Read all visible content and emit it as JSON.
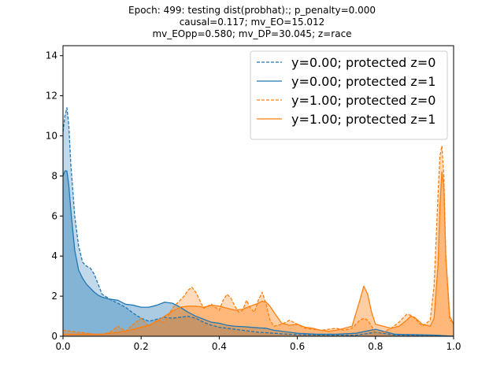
{
  "chart_data": {
    "type": "area",
    "title_lines": [
      "Epoch: 499: testing dist(probhat):; p_penalty=0.000",
      "causal=0.117; mv_EO=15.012",
      "mv_EOpp=0.580; mv_DP=30.045; z=race"
    ],
    "xlabel": "",
    "ylabel": "",
    "xlim": [
      0.0,
      1.0
    ],
    "ylim": [
      0,
      14.5
    ],
    "xticks": [
      0.0,
      0.2,
      0.4,
      0.6,
      0.8,
      1.0
    ],
    "xtick_labels": [
      "0.0",
      "0.2",
      "0.4",
      "0.6",
      "0.8",
      "1.0"
    ],
    "yticks": [
      0,
      2,
      4,
      6,
      8,
      10,
      12,
      14
    ],
    "ytick_labels": [
      "0",
      "2",
      "4",
      "6",
      "8",
      "10",
      "12",
      "14"
    ],
    "legend_position": "top-right",
    "grid": false,
    "series": [
      {
        "name": "y=0.00; protected z=0",
        "color": "#1f77b4",
        "linestyle": "dashed",
        "x": [
          0.0,
          0.005,
          0.01,
          0.015,
          0.02,
          0.03,
          0.04,
          0.05,
          0.06,
          0.07,
          0.08,
          0.09,
          0.1,
          0.12,
          0.14,
          0.16,
          0.18,
          0.2,
          0.22,
          0.24,
          0.26,
          0.28,
          0.3,
          0.32,
          0.34,
          0.36,
          0.38,
          0.4,
          0.42,
          0.44,
          0.46,
          0.48,
          0.5,
          0.52,
          0.54,
          0.56,
          0.58,
          0.6,
          0.65,
          0.7,
          0.75,
          0.8,
          0.85,
          0.9,
          0.95,
          1.0
        ],
        "y": [
          10.2,
          11.0,
          11.4,
          10.5,
          8.6,
          6.0,
          4.5,
          3.7,
          3.5,
          3.4,
          3.1,
          2.6,
          2.1,
          1.85,
          1.65,
          1.45,
          1.15,
          0.9,
          0.75,
          0.85,
          0.95,
          0.9,
          0.95,
          1.0,
          0.9,
          0.7,
          0.55,
          0.45,
          0.4,
          0.35,
          0.3,
          0.25,
          0.2,
          0.18,
          0.15,
          0.12,
          0.1,
          0.08,
          0.06,
          0.05,
          0.05,
          0.2,
          0.06,
          0.05,
          0.05,
          0.0
        ]
      },
      {
        "name": "y=0.00; protected z=1",
        "color": "#1f77b4",
        "linestyle": "solid",
        "x": [
          0.0,
          0.005,
          0.01,
          0.015,
          0.02,
          0.03,
          0.04,
          0.05,
          0.06,
          0.07,
          0.08,
          0.09,
          0.1,
          0.12,
          0.14,
          0.16,
          0.18,
          0.2,
          0.22,
          0.24,
          0.26,
          0.28,
          0.3,
          0.32,
          0.34,
          0.36,
          0.38,
          0.4,
          0.42,
          0.44,
          0.46,
          0.48,
          0.5,
          0.52,
          0.54,
          0.56,
          0.58,
          0.6,
          0.65,
          0.7,
          0.75,
          0.8,
          0.85,
          0.9,
          0.95,
          1.0
        ],
        "y": [
          8.0,
          8.25,
          8.25,
          7.5,
          6.3,
          4.3,
          3.3,
          2.9,
          2.6,
          2.4,
          2.2,
          2.05,
          1.95,
          1.85,
          1.8,
          1.6,
          1.55,
          1.45,
          1.45,
          1.55,
          1.7,
          1.65,
          1.45,
          1.2,
          1.0,
          0.85,
          0.7,
          0.65,
          0.55,
          0.5,
          0.48,
          0.45,
          0.42,
          0.4,
          0.3,
          0.25,
          0.2,
          0.15,
          0.1,
          0.1,
          0.15,
          0.35,
          0.1,
          0.08,
          0.06,
          0.0
        ]
      },
      {
        "name": "y=1.00; protected z=0",
        "color": "#ff7f0e",
        "linestyle": "dashed",
        "x": [
          0.0,
          0.02,
          0.04,
          0.06,
          0.08,
          0.1,
          0.12,
          0.14,
          0.16,
          0.18,
          0.2,
          0.22,
          0.24,
          0.26,
          0.28,
          0.3,
          0.31,
          0.32,
          0.33,
          0.34,
          0.35,
          0.36,
          0.38,
          0.4,
          0.41,
          0.42,
          0.43,
          0.44,
          0.45,
          0.46,
          0.47,
          0.48,
          0.49,
          0.5,
          0.51,
          0.52,
          0.53,
          0.54,
          0.56,
          0.58,
          0.6,
          0.62,
          0.64,
          0.66,
          0.68,
          0.7,
          0.72,
          0.74,
          0.76,
          0.77,
          0.78,
          0.8,
          0.82,
          0.84,
          0.86,
          0.88,
          0.89,
          0.9,
          0.92,
          0.94,
          0.95,
          0.96,
          0.965,
          0.97,
          0.975,
          0.98,
          0.99,
          1.0
        ],
        "y": [
          0.3,
          0.25,
          0.2,
          0.15,
          0.1,
          0.1,
          0.2,
          0.5,
          0.25,
          0.6,
          0.9,
          0.5,
          0.8,
          0.7,
          1.4,
          1.8,
          2.0,
          2.3,
          2.45,
          2.2,
          1.8,
          1.4,
          1.6,
          1.3,
          1.8,
          2.1,
          1.9,
          1.5,
          1.2,
          1.3,
          1.8,
          1.4,
          1.2,
          1.8,
          2.2,
          1.6,
          0.8,
          0.5,
          0.6,
          0.8,
          0.6,
          0.4,
          0.35,
          0.3,
          0.35,
          0.4,
          0.3,
          0.4,
          0.8,
          0.9,
          0.8,
          0.2,
          0.2,
          0.4,
          0.7,
          1.1,
          1.05,
          0.9,
          0.5,
          0.8,
          2.5,
          7.0,
          9.0,
          9.5,
          8.0,
          4.0,
          0.8,
          0.7
        ]
      },
      {
        "name": "y=1.00; protected z=1",
        "color": "#ff7f0e",
        "linestyle": "solid",
        "x": [
          0.0,
          0.02,
          0.04,
          0.06,
          0.08,
          0.1,
          0.12,
          0.14,
          0.16,
          0.18,
          0.2,
          0.22,
          0.24,
          0.26,
          0.28,
          0.3,
          0.32,
          0.34,
          0.36,
          0.38,
          0.4,
          0.42,
          0.44,
          0.46,
          0.48,
          0.5,
          0.51,
          0.52,
          0.53,
          0.54,
          0.56,
          0.58,
          0.6,
          0.62,
          0.64,
          0.66,
          0.68,
          0.7,
          0.72,
          0.74,
          0.76,
          0.77,
          0.78,
          0.79,
          0.8,
          0.82,
          0.84,
          0.86,
          0.88,
          0.89,
          0.9,
          0.92,
          0.94,
          0.95,
          0.96,
          0.965,
          0.97,
          0.975,
          0.98,
          0.99,
          1.0
        ],
        "y": [
          0.1,
          0.1,
          0.1,
          0.1,
          0.1,
          0.1,
          0.15,
          0.2,
          0.25,
          0.35,
          0.45,
          0.55,
          0.75,
          1.0,
          1.25,
          1.45,
          1.5,
          1.5,
          1.45,
          1.55,
          1.5,
          1.4,
          1.3,
          1.35,
          1.5,
          1.65,
          1.75,
          1.7,
          1.5,
          1.2,
          0.65,
          0.55,
          0.6,
          0.45,
          0.4,
          0.3,
          0.25,
          0.3,
          0.4,
          0.5,
          1.8,
          2.5,
          2.1,
          1.2,
          0.6,
          0.5,
          0.4,
          0.5,
          0.8,
          1.0,
          0.95,
          0.6,
          0.5,
          0.9,
          3.5,
          6.5,
          8.2,
          7.5,
          4.0,
          1.0,
          0.6
        ]
      }
    ]
  }
}
